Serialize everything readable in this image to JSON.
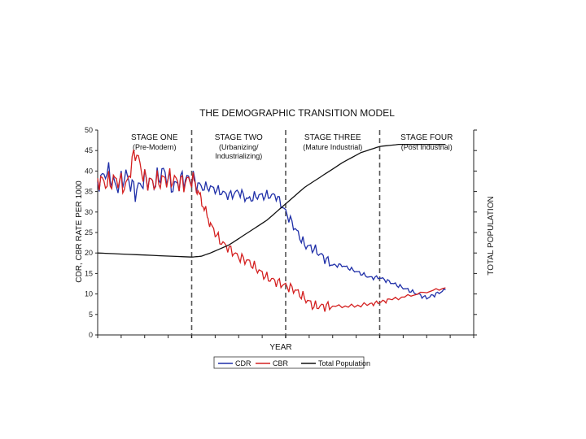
{
  "chart_data": {
    "type": "line",
    "title": "THE DEMOGRAPHIC TRANSITION MODEL",
    "xlabel": "YEAR",
    "ylabel": "CDR, CBR RATE PER 1000",
    "y2label": "TOTAL POPULATION",
    "ylim": [
      0,
      50
    ],
    "y_ticks": [
      "50",
      "45",
      "40",
      "35",
      "30",
      "25",
      "20",
      "15",
      "10",
      "5",
      "0"
    ],
    "stages": [
      {
        "name": "STAGE ONE",
        "sub": [
          "(Pre-Modern)"
        ],
        "start": 0,
        "end": 1
      },
      {
        "name": "STAGE TWO",
        "sub": [
          "(Urbanizing/",
          "Industrializing)"
        ],
        "start": 1,
        "end": 2
      },
      {
        "name": "STAGE THREE",
        "sub": [
          "(Mature Industrial)"
        ],
        "start": 2,
        "end": 3
      },
      {
        "name": "STAGE FOUR",
        "sub": [
          "(Post Industrial)"
        ],
        "start": 3,
        "end": 4
      }
    ],
    "x_range": [
      0,
      4
    ],
    "series": [
      {
        "name": "CDR",
        "color": "#1f2fa8",
        "x": [
          0,
          0.1,
          0.2,
          0.3,
          0.4,
          0.5,
          0.6,
          0.7,
          0.8,
          0.9,
          1.0,
          1.1,
          1.2,
          1.3,
          1.4,
          1.5,
          1.6,
          1.7,
          1.8,
          1.9,
          2.0,
          2.1,
          2.2,
          2.3,
          2.4,
          2.5,
          2.6,
          2.7,
          2.8,
          2.9,
          3.0,
          3.1,
          3.2,
          3.3,
          3.4,
          3.5,
          3.6,
          3.7
        ],
        "values": [
          37,
          40,
          36,
          39,
          35,
          38,
          37,
          40,
          36,
          38,
          38,
          36,
          36,
          35,
          34,
          35,
          33,
          34,
          34,
          34,
          30,
          26,
          22,
          21,
          19,
          17,
          17,
          16,
          15,
          14,
          14,
          13,
          12,
          11,
          10,
          9,
          10,
          11
        ]
      },
      {
        "name": "CBR",
        "color": "#d42020",
        "x": [
          0,
          0.1,
          0.2,
          0.3,
          0.4,
          0.5,
          0.6,
          0.7,
          0.8,
          0.9,
          1.0,
          1.05,
          1.1,
          1.15,
          1.2,
          1.3,
          1.4,
          1.5,
          1.6,
          1.7,
          1.8,
          1.9,
          2.0,
          2.1,
          2.2,
          2.3,
          2.4,
          2.5,
          2.7,
          2.9,
          3.0,
          3.1,
          3.3,
          3.5,
          3.7
        ],
        "values": [
          38,
          37,
          38,
          36,
          45,
          38,
          37,
          38,
          38,
          37,
          38,
          36,
          33,
          30,
          27,
          23,
          21,
          19,
          18,
          16,
          14,
          13,
          12,
          11,
          9,
          7,
          7,
          7,
          7,
          7.5,
          8,
          8.5,
          9.5,
          10.5,
          11.5
        ]
      },
      {
        "name": "Total Population",
        "color": "#111111",
        "x": [
          0,
          0.5,
          1.0,
          1.1,
          1.2,
          1.4,
          1.6,
          1.8,
          2.0,
          2.2,
          2.4,
          2.6,
          2.8,
          3.0,
          3.2,
          3.4,
          3.7
        ],
        "values": [
          20,
          19.5,
          19,
          19.2,
          20,
          22,
          25,
          28,
          32,
          36,
          39,
          42,
          44.5,
          46,
          46.5,
          46.5,
          46.5
        ]
      }
    ],
    "legend": [
      "CDR",
      "CBR",
      "Total Population"
    ],
    "legend_position": "bottom"
  }
}
